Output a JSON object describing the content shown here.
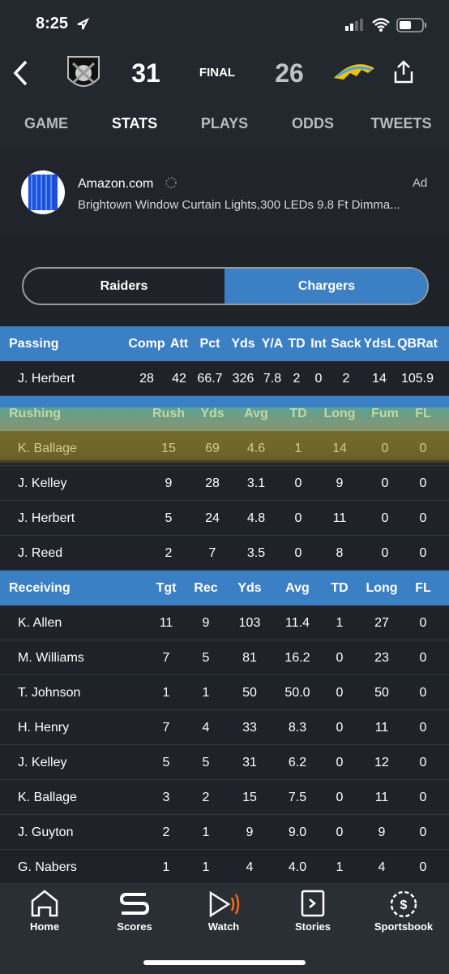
{
  "status_bar": {
    "time": "8:25"
  },
  "header": {
    "away_score": "31",
    "status": "FINAL",
    "home_score": "26"
  },
  "tabs": [
    "GAME",
    "STATS",
    "PLAYS",
    "ODDS",
    "TWEETS"
  ],
  "ad": {
    "advertiser": "Amazon.com",
    "label": "Ad",
    "text": "Brightown Window Curtain Lights,300 LEDs 9.8 Ft Dimma..."
  },
  "team_toggle": [
    "Raiders",
    "Chargers"
  ],
  "sections": [
    {
      "title": "Passing",
      "columns": [
        "Comp",
        "Att",
        "Pct",
        "Yds",
        "Y/A",
        "TD",
        "Int",
        "Sack",
        "YdsL",
        "QBRat"
      ],
      "rows": [
        [
          "J. Herbert",
          "28",
          "42",
          "66.7",
          "326",
          "7.8",
          "2",
          "0",
          "2",
          "14",
          "105.9"
        ]
      ]
    },
    {
      "title": "Rushing",
      "columns": [
        "Rush",
        "Yds",
        "Avg",
        "TD",
        "Long",
        "Fum",
        "FL"
      ],
      "rows": [
        [
          "K. Ballage",
          "15",
          "69",
          "4.6",
          "1",
          "14",
          "0",
          "0"
        ],
        [
          "J. Kelley",
          "9",
          "28",
          "3.1",
          "0",
          "9",
          "0",
          "0"
        ],
        [
          "J. Herbert",
          "5",
          "24",
          "4.8",
          "0",
          "11",
          "0",
          "0"
        ],
        [
          "J. Reed",
          "2",
          "7",
          "3.5",
          "0",
          "8",
          "0",
          "0"
        ]
      ]
    },
    {
      "title": "Receiving",
      "columns": [
        "Tgt",
        "Rec",
        "Yds",
        "Avg",
        "TD",
        "Long",
        "FL"
      ],
      "rows": [
        [
          "K. Allen",
          "11",
          "9",
          "103",
          "11.4",
          "1",
          "27",
          "0"
        ],
        [
          "M. Williams",
          "7",
          "5",
          "81",
          "16.2",
          "0",
          "23",
          "0"
        ],
        [
          "T. Johnson",
          "1",
          "1",
          "50",
          "50.0",
          "0",
          "50",
          "0"
        ],
        [
          "H. Henry",
          "7",
          "4",
          "33",
          "8.3",
          "0",
          "11",
          "0"
        ],
        [
          "J. Kelley",
          "5",
          "5",
          "31",
          "6.2",
          "0",
          "12",
          "0"
        ],
        [
          "K. Ballage",
          "3",
          "2",
          "15",
          "7.5",
          "0",
          "11",
          "0"
        ],
        [
          "J. Guyton",
          "2",
          "1",
          "9",
          "9.0",
          "0",
          "9",
          "0"
        ],
        [
          "G. Nabers",
          "1",
          "1",
          "4",
          "4.0",
          "1",
          "4",
          "0"
        ]
      ]
    }
  ],
  "nav": [
    "Home",
    "Scores",
    "Watch",
    "Stories",
    "Sportsbook"
  ]
}
